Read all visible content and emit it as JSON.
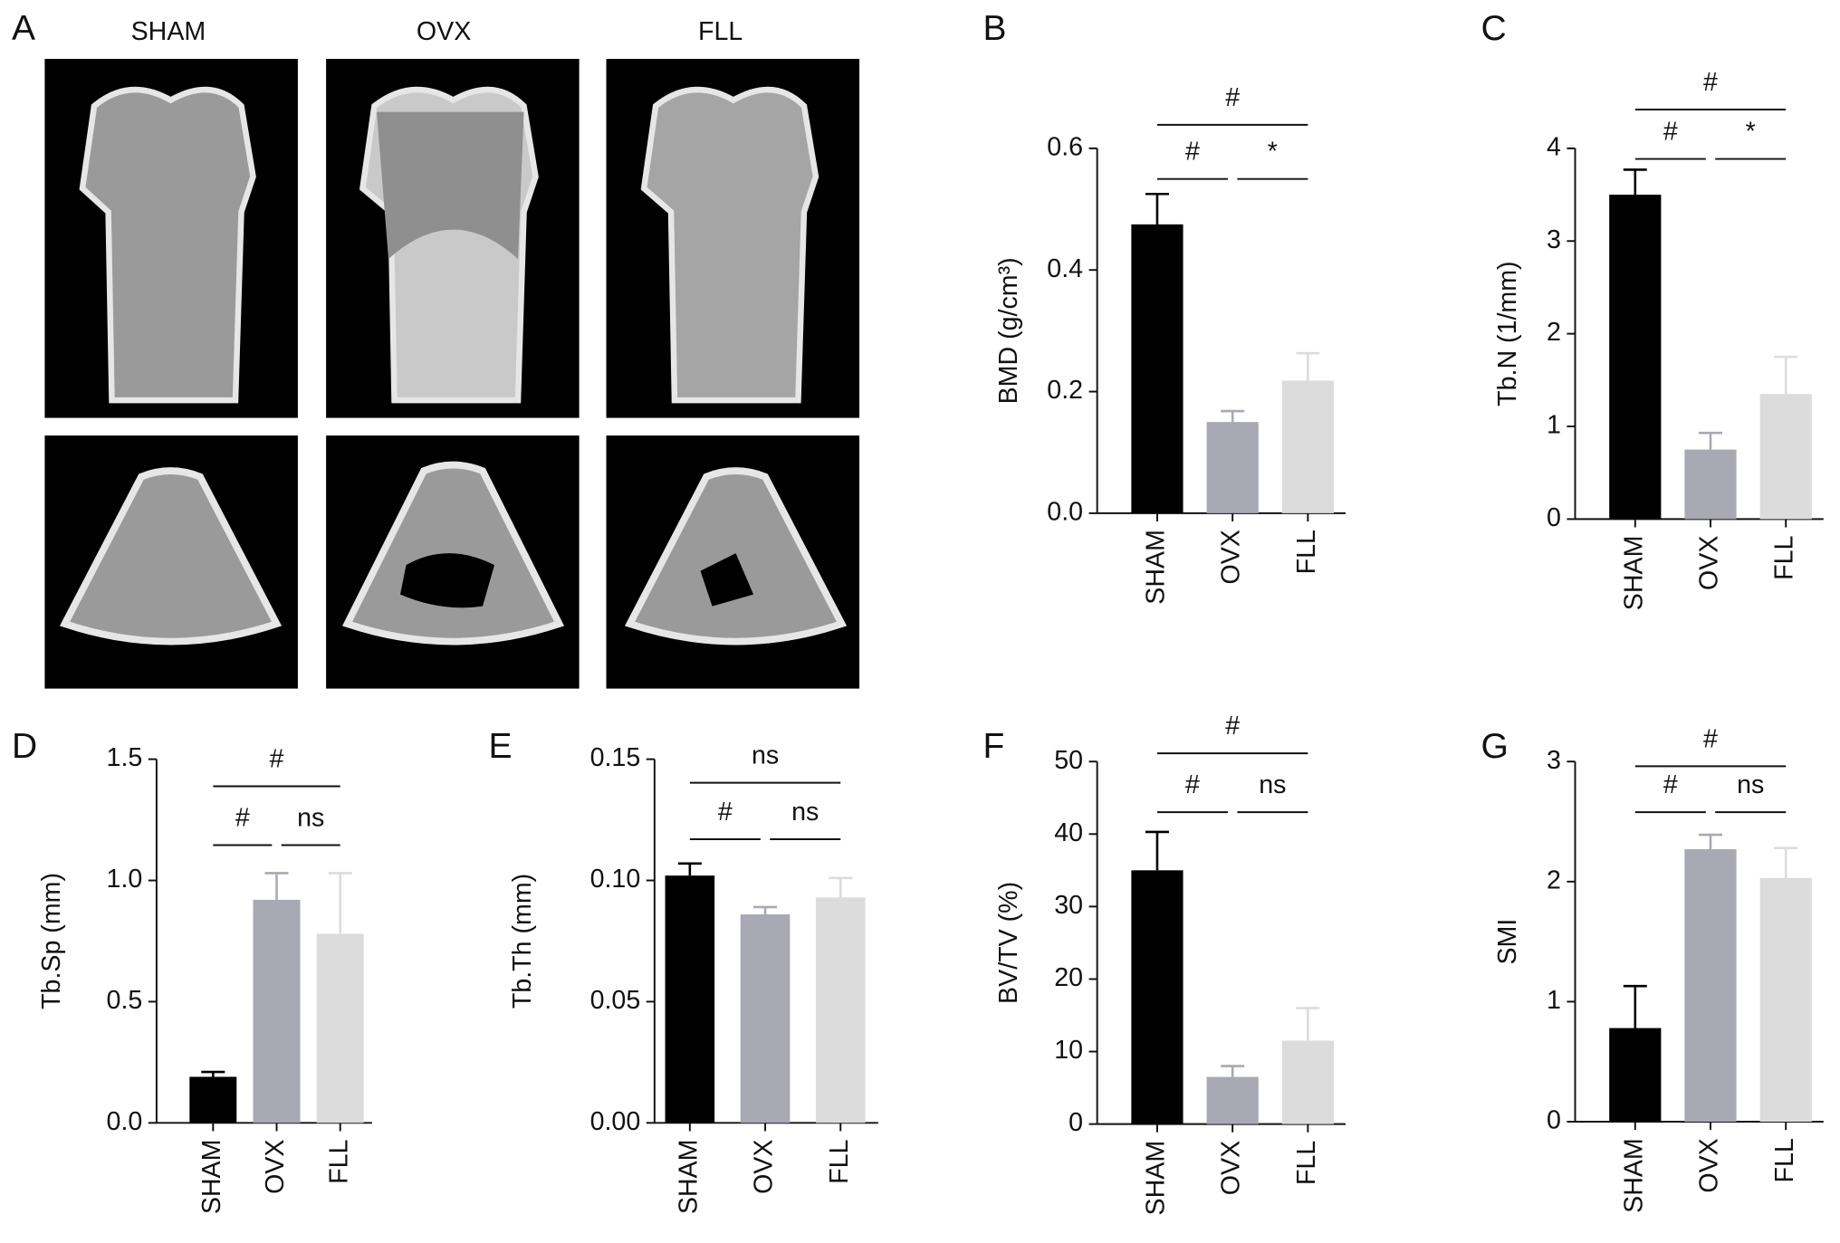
{
  "panel_a": {
    "label": "A",
    "columns": [
      "SHAM",
      "OVX",
      "FLL"
    ]
  },
  "chart_data": [
    {
      "type": "bar",
      "panel": "B",
      "ylabel": "BMD (g/cm³)",
      "categories": [
        "SHAM",
        "OVX",
        "FLL"
      ],
      "values": [
        0.475,
        0.15,
        0.218
      ],
      "errors": [
        0.05,
        0.018,
        0.045
      ],
      "colors": [
        "#000000",
        "#a9a9b3",
        "#dcdcdc"
      ],
      "ylim": [
        0,
        0.6
      ],
      "yticks": [
        {
          "value": 0,
          "label": "0.0"
        },
        0.2,
        0.4,
        0.6
      ],
      "annotations": [
        {
          "label": "#",
          "between": [
            "SHAM",
            "FLL"
          ]
        },
        {
          "label": "#",
          "between": [
            "SHAM",
            "OVX"
          ]
        },
        {
          "label": "*",
          "between": [
            "OVX",
            "FLL"
          ]
        }
      ]
    },
    {
      "type": "bar",
      "panel": "C",
      "ylabel": "Tb.N (1/mm)",
      "categories": [
        "SHAM",
        "OVX",
        "FLL"
      ],
      "values": [
        3.5,
        0.75,
        1.35
      ],
      "errors": [
        0.27,
        0.18,
        0.4
      ],
      "colors": [
        "#000000",
        "#a9a9b3",
        "#dcdcdc"
      ],
      "ylim": [
        0,
        4
      ],
      "yticks": [
        0,
        1,
        2,
        3,
        4
      ],
      "annotations": [
        {
          "label": "#",
          "between": [
            "SHAM",
            "FLL"
          ]
        },
        {
          "label": "#",
          "between": [
            "SHAM",
            "OVX"
          ]
        },
        {
          "label": "*",
          "between": [
            "OVX",
            "FLL"
          ]
        }
      ]
    },
    {
      "type": "bar",
      "panel": "D",
      "ylabel": "Tb.Sp (mm)",
      "categories": [
        "SHAM",
        "OVX",
        "FLL"
      ],
      "values": [
        0.19,
        0.92,
        0.78
      ],
      "errors": [
        0.02,
        0.11,
        0.25
      ],
      "colors": [
        "#000000",
        "#a9a9b3",
        "#dcdcdc"
      ],
      "ylim": [
        0,
        1.5
      ],
      "yticks": [
        {
          "value": 0,
          "label": "0.0"
        },
        0.5,
        {
          "value": 1,
          "label": "1.0"
        },
        1.5
      ],
      "annotations": [
        {
          "label": "#",
          "between": [
            "SHAM",
            "FLL"
          ]
        },
        {
          "label": "#",
          "between": [
            "SHAM",
            "OVX"
          ]
        },
        {
          "label": "ns",
          "between": [
            "OVX",
            "FLL"
          ]
        }
      ]
    },
    {
      "type": "bar",
      "panel": "E",
      "ylabel": "Tb.Th (mm)",
      "categories": [
        "SHAM",
        "OVX",
        "FLL"
      ],
      "values": [
        0.102,
        0.086,
        0.093
      ],
      "errors": [
        0.005,
        0.003,
        0.008
      ],
      "colors": [
        "#000000",
        "#a9a9b3",
        "#dcdcdc"
      ],
      "ylim": [
        0,
        0.15
      ],
      "yticks": [
        {
          "value": 0,
          "label": "0.00"
        },
        0.05,
        {
          "value": 0.1,
          "label": "0.10"
        },
        0.15
      ],
      "annotations": [
        {
          "label": "ns",
          "between": [
            "SHAM",
            "FLL"
          ]
        },
        {
          "label": "#",
          "between": [
            "SHAM",
            "OVX"
          ]
        },
        {
          "label": "ns",
          "between": [
            "OVX",
            "FLL"
          ]
        }
      ]
    },
    {
      "type": "bar",
      "panel": "F",
      "ylabel": "BV/TV (%)",
      "categories": [
        "SHAM",
        "OVX",
        "FLL"
      ],
      "values": [
        35,
        6.5,
        11.5
      ],
      "errors": [
        5.3,
        1.5,
        4.5
      ],
      "colors": [
        "#000000",
        "#a9a9b3",
        "#dcdcdc"
      ],
      "ylim": [
        0,
        50
      ],
      "yticks": [
        0,
        10,
        20,
        30,
        40,
        50
      ],
      "annotations": [
        {
          "label": "#",
          "between": [
            "SHAM",
            "FLL"
          ]
        },
        {
          "label": "#",
          "between": [
            "SHAM",
            "OVX"
          ]
        },
        {
          "label": "ns",
          "between": [
            "OVX",
            "FLL"
          ]
        }
      ]
    },
    {
      "type": "bar",
      "panel": "G",
      "ylabel": "SMI",
      "categories": [
        "SHAM",
        "OVX",
        "FLL"
      ],
      "values": [
        0.78,
        2.27,
        2.03
      ],
      "errors": [
        0.35,
        0.12,
        0.25
      ],
      "colors": [
        "#000000",
        "#a9a9b3",
        "#dcdcdc"
      ],
      "ylim": [
        0,
        3
      ],
      "yticks": [
        0,
        1,
        2,
        3
      ],
      "annotations": [
        {
          "label": "#",
          "between": [
            "SHAM",
            "FLL"
          ]
        },
        {
          "label": "#",
          "between": [
            "SHAM",
            "OVX"
          ]
        },
        {
          "label": "ns",
          "between": [
            "OVX",
            "FLL"
          ]
        }
      ]
    }
  ]
}
